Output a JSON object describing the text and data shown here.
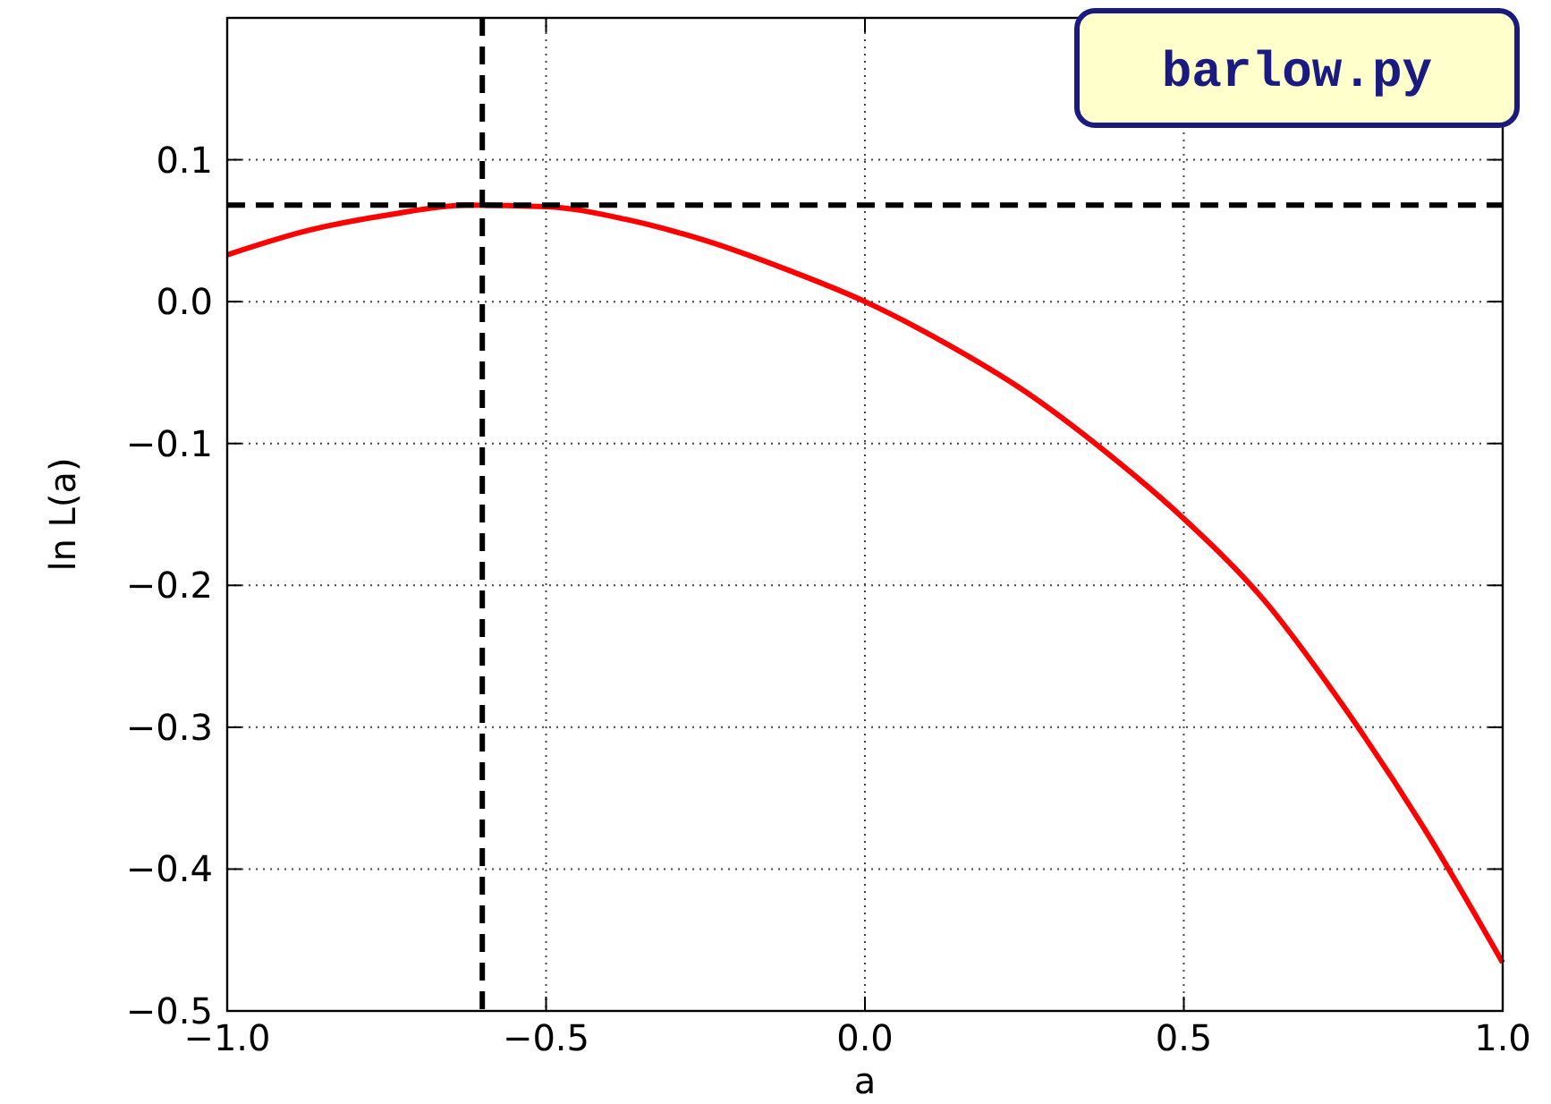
{
  "chart_data": {
    "type": "line",
    "xlabel": "a",
    "ylabel": "ln L(a)",
    "x": [
      -1,
      -0.875,
      -0.75,
      -0.625,
      -0.5,
      -0.375,
      -0.25,
      -0.125,
      0,
      0.125,
      0.25,
      0.375,
      0.5,
      0.625,
      0.75,
      0.875,
      1
    ],
    "series": [
      {
        "color": "#ff0000",
        "values": [
          0.033,
          0.05,
          0.061,
          0.068,
          0.067,
          0.058,
          0.043,
          0.023,
          0,
          -0.029,
          -0.063,
          -0.105,
          -0.153,
          -0.21,
          -0.285,
          -0.37,
          -0.466
        ]
      }
    ],
    "xlim": [
      -1,
      1
    ],
    "xticks": [
      {
        "value": -1,
        "label": "−1.0"
      },
      {
        "value": -0.5,
        "label": "−0.5"
      },
      {
        "value": 0,
        "label": "0.0"
      },
      {
        "value": 0.5,
        "label": "0.5"
      },
      {
        "value": 1,
        "label": "1.0"
      }
    ],
    "ylim": [
      -0.5,
      0.2
    ],
    "yticks": [
      {
        "value": -0.5,
        "label": "−0.5"
      },
      {
        "value": -0.4,
        "label": "−0.4"
      },
      {
        "value": -0.3,
        "label": "−0.3"
      },
      {
        "value": -0.2,
        "label": "−0.2"
      },
      {
        "value": -0.1,
        "label": "−0.1"
      },
      {
        "value": 0,
        "label": "0.0"
      },
      {
        "value": 0.1,
        "label": "0.1"
      }
    ],
    "grid": true,
    "line_style": "solid",
    "ref_lines": [
      {
        "axis": "x",
        "value": -0.6,
        "color": "#000000",
        "line_style": "dashed"
      },
      {
        "axis": "y",
        "value": 0.068,
        "color": "#000000",
        "line_style": "dashed"
      }
    ],
    "annotations": [
      "barlow.py"
    ]
  }
}
